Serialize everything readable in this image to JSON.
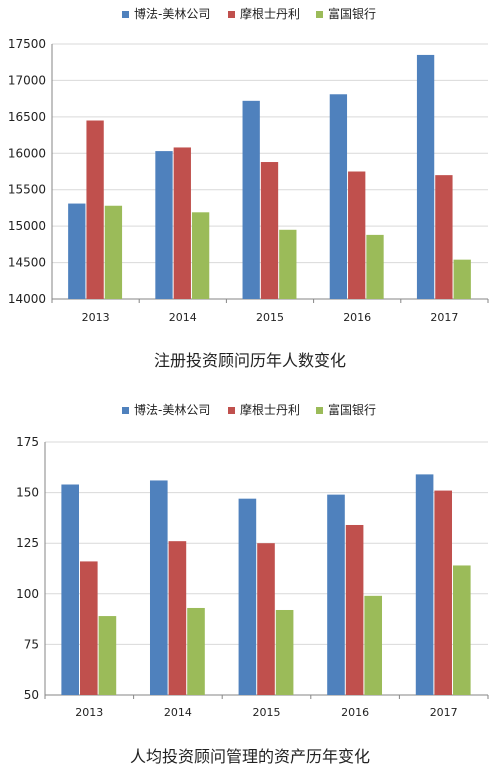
{
  "colors": {
    "s1": "#4f81bd",
    "s2": "#c0504d",
    "s3": "#9bbb59",
    "axis": "#868686",
    "grid": "#d9d9d9"
  },
  "chart_data": [
    {
      "type": "bar",
      "categories": [
        "2013",
        "2014",
        "2015",
        "2016",
        "2017"
      ],
      "series": [
        {
          "name": "博法-美林公司",
          "values": [
            15310,
            16030,
            16720,
            16810,
            17350
          ]
        },
        {
          "name": "摩根士丹利",
          "values": [
            16450,
            16080,
            15880,
            15750,
            15700
          ]
        },
        {
          "name": "富国银行",
          "values": [
            15280,
            15190,
            14950,
            14880,
            14540
          ]
        }
      ],
      "ylim": [
        14000,
        17500
      ],
      "yticks": [
        14000,
        14500,
        15000,
        15500,
        16000,
        16500,
        17000,
        17500
      ],
      "grid": true,
      "legend": "top",
      "caption": "注册投资顾问历年人数变化"
    },
    {
      "type": "bar",
      "categories": [
        "2013",
        "2014",
        "2015",
        "2016",
        "2017"
      ],
      "series": [
        {
          "name": "博法-美林公司",
          "values": [
            154,
            156,
            147,
            149,
            159
          ]
        },
        {
          "name": "摩根士丹利",
          "values": [
            116,
            126,
            125,
            134,
            151
          ]
        },
        {
          "name": "富国银行",
          "values": [
            89,
            93,
            92,
            99,
            114
          ]
        }
      ],
      "ylim": [
        50,
        175
      ],
      "yticks": [
        50,
        75,
        100,
        125,
        150,
        175
      ],
      "grid": true,
      "legend": "top",
      "caption": "人均投资顾问管理的资产历年变化"
    }
  ]
}
